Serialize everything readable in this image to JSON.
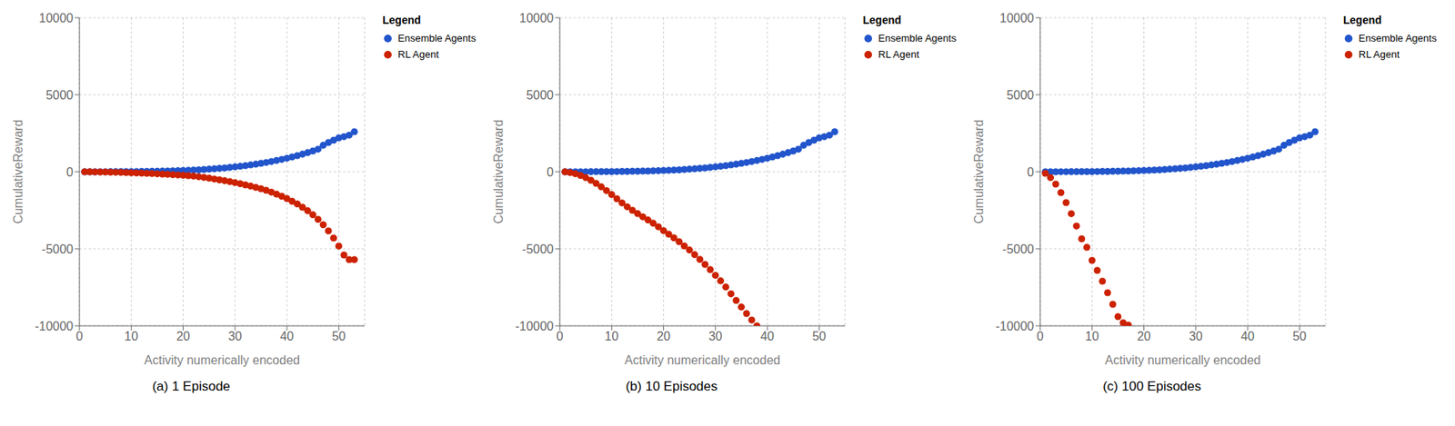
{
  "chart_data": [
    {
      "type": "scatter",
      "title": "(a) 1 Episode",
      "xlabel": "Activity numerically encoded",
      "ylabel": "CumulativeReward",
      "xlim": [
        0,
        55
      ],
      "ylim": [
        -10000,
        10000
      ],
      "xticks": [
        0,
        10,
        20,
        30,
        40,
        50
      ],
      "yticks": [
        -10000,
        -5000,
        0,
        5000,
        10000
      ],
      "grid": true,
      "legend": "right",
      "legend_title": "Legend",
      "series": [
        {
          "name": "Ensemble Agents",
          "color": "#2255CC",
          "x": [
            1,
            2,
            3,
            4,
            5,
            6,
            7,
            8,
            9,
            10,
            11,
            12,
            13,
            14,
            15,
            16,
            17,
            18,
            19,
            20,
            21,
            22,
            23,
            24,
            25,
            26,
            27,
            28,
            29,
            30,
            31,
            32,
            33,
            34,
            35,
            36,
            37,
            38,
            39,
            40,
            41,
            42,
            43,
            44,
            45,
            46,
            47,
            48,
            49,
            50,
            51,
            52,
            53
          ],
          "values": [
            0,
            0,
            2,
            4,
            5,
            6,
            8,
            10,
            12,
            15,
            18,
            22,
            27,
            32,
            38,
            45,
            52,
            60,
            70,
            82,
            95,
            110,
            128,
            148,
            170,
            195,
            222,
            252,
            285,
            320,
            358,
            400,
            445,
            494,
            547,
            604,
            666,
            732,
            804,
            880,
            962,
            1050,
            1144,
            1244,
            1352,
            1466,
            1720,
            1900,
            2050,
            2200,
            2280,
            2380,
            2600
          ]
        },
        {
          "name": "RL Agent",
          "color": "#CC2200",
          "x": [
            1,
            2,
            3,
            4,
            5,
            6,
            7,
            8,
            9,
            10,
            11,
            12,
            13,
            14,
            15,
            16,
            17,
            18,
            19,
            20,
            21,
            22,
            23,
            24,
            25,
            26,
            27,
            28,
            29,
            30,
            31,
            32,
            33,
            34,
            35,
            36,
            37,
            38,
            39,
            40,
            41,
            42,
            43,
            44,
            45,
            46,
            47,
            48,
            49,
            50,
            51,
            52,
            53
          ],
          "values": [
            0,
            -3,
            -7,
            -12,
            -18,
            -25,
            -33,
            -42,
            -52,
            -63,
            -75,
            -88,
            -102,
            -117,
            -133,
            -150,
            -168,
            -187,
            -207,
            -228,
            -250,
            -280,
            -320,
            -365,
            -415,
            -470,
            -525,
            -580,
            -640,
            -705,
            -775,
            -850,
            -930,
            -1010,
            -1100,
            -1200,
            -1320,
            -1450,
            -1590,
            -1740,
            -1910,
            -2090,
            -2300,
            -2530,
            -2790,
            -3090,
            -3440,
            -3840,
            -4300,
            -4820,
            -5400,
            -5700,
            -5700
          ]
        }
      ]
    },
    {
      "type": "scatter",
      "title": "(b) 10 Episodes",
      "xlabel": "Activity numerically encoded",
      "ylabel": "CumulativeReward",
      "xlim": [
        0,
        55
      ],
      "ylim": [
        -10000,
        10000
      ],
      "xticks": [
        0,
        10,
        20,
        30,
        40,
        50
      ],
      "yticks": [
        -10000,
        -5000,
        0,
        5000,
        10000
      ],
      "grid": true,
      "legend": "right",
      "legend_title": "Legend",
      "series": [
        {
          "name": "Ensemble Agents",
          "color": "#2255CC",
          "x": [
            1,
            2,
            3,
            4,
            5,
            6,
            7,
            8,
            9,
            10,
            11,
            12,
            13,
            14,
            15,
            16,
            17,
            18,
            19,
            20,
            21,
            22,
            23,
            24,
            25,
            26,
            27,
            28,
            29,
            30,
            31,
            32,
            33,
            34,
            35,
            36,
            37,
            38,
            39,
            40,
            41,
            42,
            43,
            44,
            45,
            46,
            47,
            48,
            49,
            50,
            51,
            52,
            53
          ],
          "values": [
            0,
            0,
            2,
            4,
            5,
            6,
            8,
            10,
            12,
            15,
            18,
            22,
            27,
            32,
            38,
            45,
            52,
            60,
            70,
            82,
            95,
            110,
            128,
            148,
            170,
            195,
            222,
            252,
            285,
            320,
            358,
            400,
            445,
            494,
            547,
            604,
            666,
            732,
            804,
            880,
            962,
            1050,
            1144,
            1244,
            1352,
            1466,
            1720,
            1900,
            2050,
            2200,
            2280,
            2380,
            2600
          ]
        },
        {
          "name": "RL Agent",
          "color": "#CC2200",
          "x": [
            1,
            2,
            3,
            4,
            5,
            6,
            7,
            8,
            9,
            10,
            11,
            12,
            13,
            14,
            15,
            16,
            17,
            18,
            19,
            20,
            21,
            22,
            23,
            24,
            25,
            26,
            27,
            28,
            29,
            30,
            31,
            32,
            33,
            34,
            35,
            36,
            37,
            38
          ],
          "values": [
            0,
            -50,
            -130,
            -240,
            -380,
            -550,
            -750,
            -980,
            -1220,
            -1480,
            -1750,
            -2020,
            -2270,
            -2500,
            -2710,
            -2920,
            -3130,
            -3340,
            -3570,
            -3820,
            -4050,
            -4290,
            -4540,
            -4810,
            -5080,
            -5380,
            -5690,
            -6010,
            -6350,
            -6720,
            -7080,
            -7480,
            -7920,
            -8350,
            -8780,
            -9200,
            -9620,
            -10000
          ]
        }
      ]
    },
    {
      "type": "scatter",
      "title": "(c) 100 Episodes",
      "xlabel": "Activity numerically encoded",
      "ylabel": "CumulativeReward",
      "xlim": [
        0,
        55
      ],
      "ylim": [
        -10000,
        10000
      ],
      "xticks": [
        0,
        10,
        20,
        30,
        40,
        50
      ],
      "yticks": [
        -10000,
        -5000,
        0,
        5000,
        10000
      ],
      "grid": true,
      "legend": "right",
      "legend_title": "Legend",
      "series": [
        {
          "name": "Ensemble Agents",
          "color": "#2255CC",
          "x": [
            1,
            2,
            3,
            4,
            5,
            6,
            7,
            8,
            9,
            10,
            11,
            12,
            13,
            14,
            15,
            16,
            17,
            18,
            19,
            20,
            21,
            22,
            23,
            24,
            25,
            26,
            27,
            28,
            29,
            30,
            31,
            32,
            33,
            34,
            35,
            36,
            37,
            38,
            39,
            40,
            41,
            42,
            43,
            44,
            45,
            46,
            47,
            48,
            49,
            50,
            51,
            52,
            53
          ],
          "values": [
            0,
            0,
            2,
            4,
            5,
            6,
            8,
            10,
            12,
            15,
            18,
            22,
            27,
            32,
            38,
            45,
            52,
            60,
            70,
            82,
            95,
            110,
            128,
            148,
            170,
            195,
            222,
            252,
            285,
            320,
            358,
            400,
            445,
            494,
            547,
            604,
            666,
            732,
            804,
            880,
            962,
            1050,
            1144,
            1244,
            1352,
            1466,
            1720,
            1900,
            2050,
            2200,
            2280,
            2380,
            2600
          ]
        },
        {
          "name": "RL Agent",
          "color": "#CC2200",
          "x": [
            1,
            2,
            3,
            4,
            5,
            6,
            7,
            8,
            9,
            10,
            11,
            12,
            13,
            14,
            15,
            16,
            17
          ],
          "values": [
            -100,
            -380,
            -800,
            -1350,
            -2000,
            -2720,
            -3520,
            -4350,
            -4900,
            -5750,
            -6400,
            -7100,
            -7850,
            -8600,
            -9400,
            -9800,
            -9950
          ]
        }
      ]
    }
  ]
}
